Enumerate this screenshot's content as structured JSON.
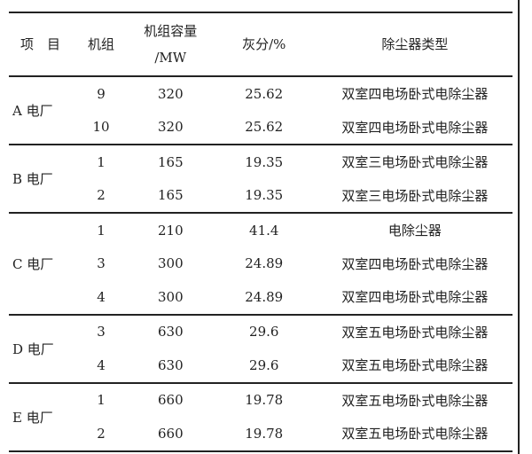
{
  "header": {
    "item": "项　目",
    "unit": "机组",
    "capacity_line1": "机组容量",
    "capacity_line2": "/MW",
    "ash": "灰分/%",
    "type": "除尘器类型"
  },
  "groups": [
    {
      "plant": "A 电厂",
      "rows": [
        [
          "9",
          "320",
          "25.62",
          "双室四电场卧式电除尘器"
        ],
        [
          "10",
          "320",
          "25.62",
          "双室四电场卧式电除尘器"
        ]
      ]
    },
    {
      "plant": "B 电厂",
      "rows": [
        [
          "1",
          "165",
          "19.35",
          "双室三电场卧式电除尘器"
        ],
        [
          "2",
          "165",
          "19.35",
          "双室三电场卧式电除尘器"
        ]
      ]
    },
    {
      "plant": "C 电厂",
      "rows": [
        [
          "1",
          "210",
          "41.4",
          "电除尘器"
        ],
        [
          "3",
          "300",
          "24.89",
          "双室四电场卧式电除尘器"
        ],
        [
          "4",
          "300",
          "24.89",
          "双室四电场卧式电除尘器"
        ]
      ]
    },
    {
      "plant": "D 电厂",
      "rows": [
        [
          "3",
          "630",
          "29.6",
          "双室五电场卧式电除尘器"
        ],
        [
          "4",
          "630",
          "29.6",
          "双室五电场卧式电除尘器"
        ]
      ]
    },
    {
      "plant": "E 电厂",
      "rows": [
        [
          "1",
          "660",
          "19.78",
          "双室五电场卧式电除尘器"
        ],
        [
          "2",
          "660",
          "19.78",
          "双室五电场卧式电除尘器"
        ]
      ]
    }
  ]
}
